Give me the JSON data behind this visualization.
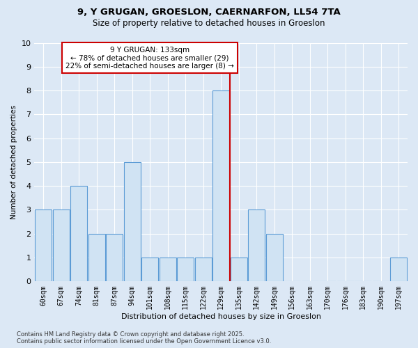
{
  "title_line1": "9, Y GRUGAN, GROESLON, CAERNARFON, LL54 7TA",
  "title_line2": "Size of property relative to detached houses in Groeslon",
  "xlabel": "Distribution of detached houses by size in Groeslon",
  "ylabel": "Number of detached properties",
  "categories": [
    "60sqm",
    "67sqm",
    "74sqm",
    "81sqm",
    "87sqm",
    "94sqm",
    "101sqm",
    "108sqm",
    "115sqm",
    "122sqm",
    "129sqm",
    "135sqm",
    "142sqm",
    "149sqm",
    "156sqm",
    "163sqm",
    "170sqm",
    "176sqm",
    "183sqm",
    "190sqm",
    "197sqm"
  ],
  "values": [
    3,
    3,
    4,
    2,
    2,
    5,
    1,
    1,
    1,
    1,
    8,
    1,
    3,
    2,
    0,
    0,
    0,
    0,
    0,
    0,
    1
  ],
  "bar_color": "#d0e3f3",
  "bar_edge_color": "#5b9bd5",
  "vline_index": 10,
  "vline_color": "#cc0000",
  "annotation_text": "9 Y GRUGAN: 133sqm\n← 78% of detached houses are smaller (29)\n22% of semi-detached houses are larger (8) →",
  "ann_box_fc": "#ffffff",
  "ann_box_ec": "#cc0000",
  "ylim_max": 10,
  "bg_color": "#dce8f5",
  "footer_line1": "Contains HM Land Registry data © Crown copyright and database right 2025.",
  "footer_line2": "Contains public sector information licensed under the Open Government Licence v3.0."
}
